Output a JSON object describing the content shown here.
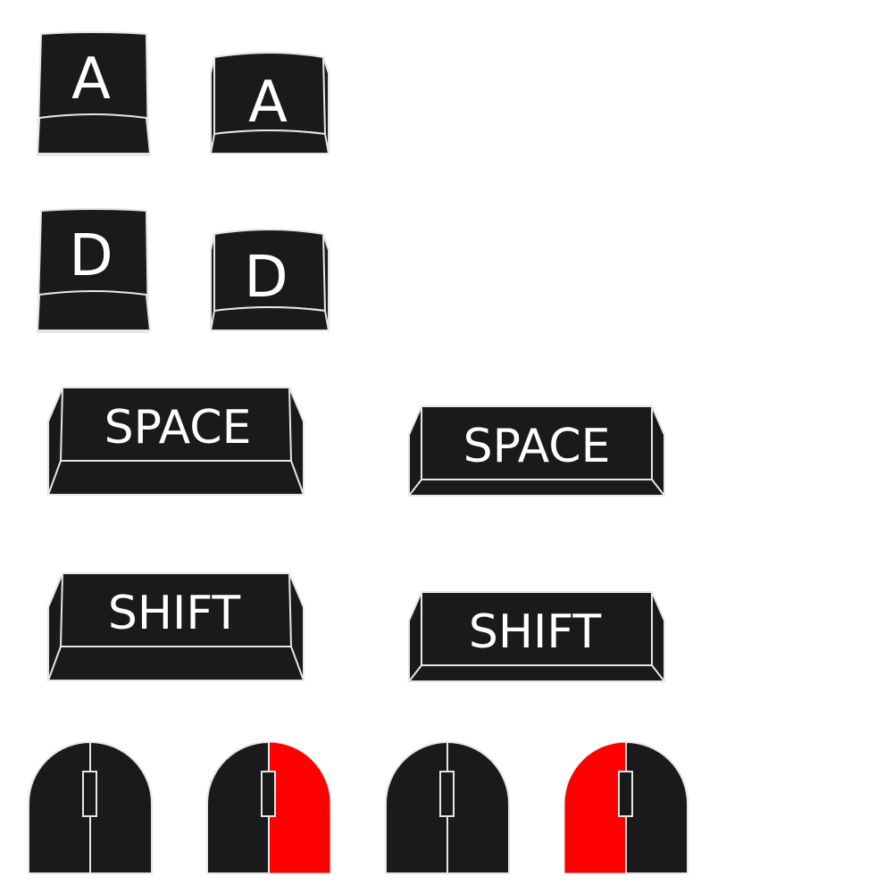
{
  "sprite_sheet": {
    "background_color": "#ffffff",
    "keycap_color": "#1a1a1a",
    "outline_color": "#e6e6e6",
    "label_color": "#ffffff",
    "highlight_color": "#ff0000",
    "keys": {
      "a": {
        "label": "A"
      },
      "d": {
        "label": "D"
      },
      "space": {
        "label": "SPACE"
      },
      "shift": {
        "label": "SHIFT"
      }
    },
    "mice": {
      "idle": {
        "pressed_button": "none"
      },
      "right_click": {
        "pressed_button": "right"
      },
      "left_click": {
        "pressed_button": "left"
      }
    }
  }
}
